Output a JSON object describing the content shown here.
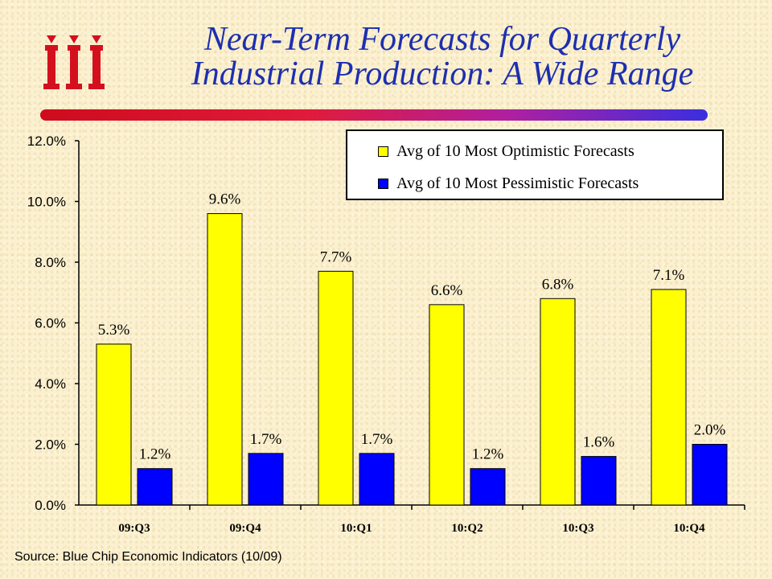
{
  "header": {
    "title_line1": "Near-Term Forecasts for Quarterly",
    "title_line2": "Industrial Production: A Wide Range"
  },
  "logo": {
    "text": "iii",
    "icon": "iii-logo-icon",
    "color": "#d4101f"
  },
  "colors": {
    "optimistic": "#ffff00",
    "pessimistic": "#0000ff",
    "title": "#1d2fb0"
  },
  "source": "Source: Blue Chip Economic Indicators (10/09)",
  "chart_data": {
    "type": "bar",
    "categories": [
      "09:Q3",
      "09:Q4",
      "10:Q1",
      "10:Q2",
      "10:Q3",
      "10:Q4"
    ],
    "series": [
      {
        "name": "Avg of 10 Most Optimistic Forecasts",
        "values": [
          5.3,
          9.6,
          7.7,
          6.6,
          6.8,
          7.1
        ],
        "labels": [
          "5.3%",
          "9.6%",
          "7.7%",
          "6.6%",
          "6.8%",
          "7.1%"
        ],
        "color": "#ffff00"
      },
      {
        "name": "Avg of 10 Most Pessimistic Forecasts",
        "values": [
          1.2,
          1.7,
          1.7,
          1.2,
          1.6,
          2.0
        ],
        "labels": [
          "1.2%",
          "1.7%",
          "1.7%",
          "1.2%",
          "1.6%",
          "2.0%"
        ],
        "color": "#0000ff"
      }
    ],
    "yticks": [
      "0.0%",
      "2.0%",
      "4.0%",
      "6.0%",
      "8.0%",
      "10.0%",
      "12.0%"
    ],
    "ylim": [
      0,
      12
    ],
    "title": "",
    "xlabel": "",
    "ylabel": "",
    "grid": false,
    "legend": "top-right"
  }
}
